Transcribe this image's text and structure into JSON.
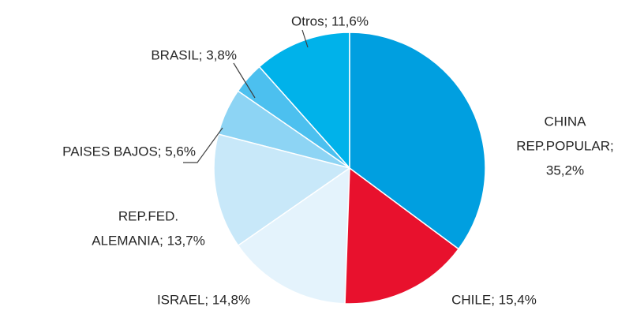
{
  "chart_data": {
    "type": "pie",
    "categories": [
      "CHINA REP.POPULAR",
      "CHILE",
      "ISRAEL",
      "REP.FED. ALEMANIA",
      "PAISES BAJOS",
      "BRASIL",
      "Otros"
    ],
    "values": [
      35.2,
      15.4,
      14.8,
      13.7,
      5.6,
      3.8,
      11.6
    ],
    "value_labels": [
      [
        "CHINA",
        "REP.POPULAR;",
        "35,2%"
      ],
      [
        "CHILE; 15,4%"
      ],
      [
        "ISRAEL; 14,8%"
      ],
      [
        "REP.FED.",
        "ALEMANIA; 13,7%"
      ],
      [
        "PAISES BAJOS; 5,6%"
      ],
      [
        "BRASIL; 3,8%"
      ],
      [
        "Otros; 11,6%"
      ]
    ],
    "colors": [
      "#009fe0",
      "#e8112d",
      "#e4f3fc",
      "#c8e8f9",
      "#8dd4f4",
      "#4cc0ef",
      "#00b2ea"
    ]
  }
}
